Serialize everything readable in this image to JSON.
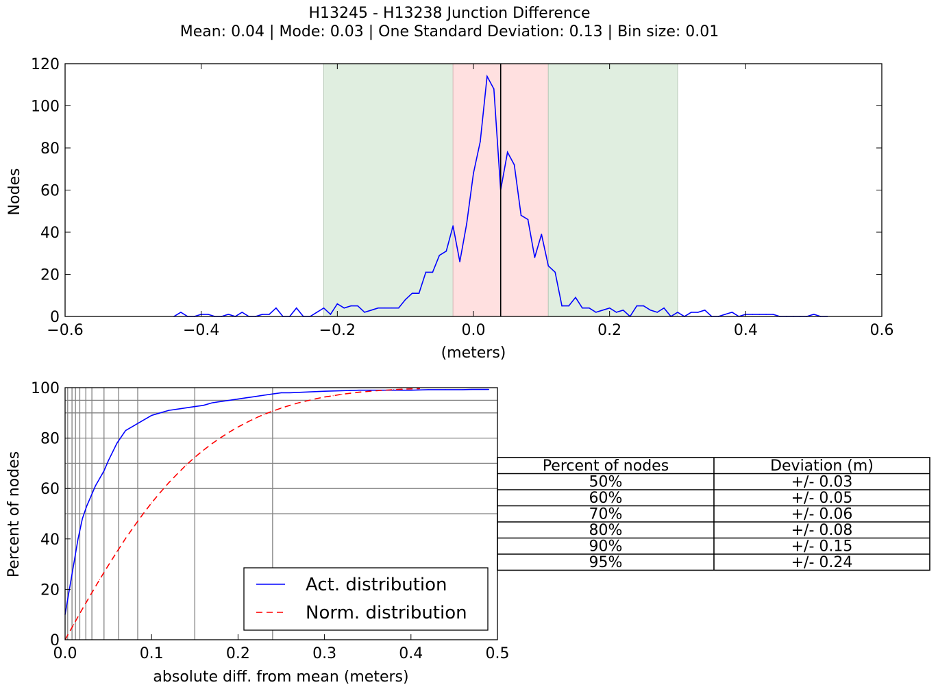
{
  "figure": {
    "title": "H13245 - H13238 Junction Difference",
    "subtitle": "Mean: 0.04 | Mode: 0.03 | One Standard Deviation: 0.13 | Bin size: 0.01"
  },
  "chart_data": [
    {
      "type": "line",
      "name": "histogram",
      "xlabel": "(meters)",
      "ylabel": "Nodes",
      "xlim": [
        -0.6,
        0.6
      ],
      "ylim": [
        0,
        120
      ],
      "xticks": [
        -0.6,
        -0.4,
        -0.2,
        0.0,
        0.2,
        0.4,
        0.6
      ],
      "xtick_labels": [
        "−0.6",
        "−0.4",
        "−0.2",
        "0.0",
        "0.2",
        "0.4",
        "0.6"
      ],
      "yticks": [
        0,
        20,
        40,
        60,
        80,
        100,
        120
      ],
      "ytick_labels": [
        "0",
        "20",
        "40",
        "60",
        "80",
        "100",
        "120"
      ],
      "bands": [
        {
          "from": -0.22,
          "to": -0.03,
          "color": "#e0eee0",
          "edge": "#b9c9b9"
        },
        {
          "from": -0.03,
          "to": 0.11,
          "color": "#ffe0e0",
          "edge": "#d9b9b9"
        },
        {
          "from": 0.11,
          "to": 0.3,
          "color": "#e0eee0",
          "edge": "#b9c9b9"
        }
      ],
      "mean_line": 0.04,
      "line_color": "#0000ff",
      "x": [
        -0.44,
        -0.43,
        -0.42,
        -0.41,
        -0.4,
        -0.39,
        -0.38,
        -0.37,
        -0.36,
        -0.35,
        -0.34,
        -0.33,
        -0.32,
        -0.31,
        -0.3,
        -0.29,
        -0.28,
        -0.27,
        -0.26,
        -0.25,
        -0.24,
        -0.23,
        -0.22,
        -0.21,
        -0.2,
        -0.19,
        -0.18,
        -0.17,
        -0.16,
        -0.15,
        -0.14,
        -0.13,
        -0.12,
        -0.11,
        -0.1,
        -0.09,
        -0.08,
        -0.07,
        -0.06,
        -0.05,
        -0.04,
        -0.03,
        -0.02,
        -0.01,
        0.0,
        0.01,
        0.02,
        0.03,
        0.04,
        0.05,
        0.06,
        0.07,
        0.08,
        0.09,
        0.1,
        0.11,
        0.12,
        0.13,
        0.14,
        0.15,
        0.16,
        0.17,
        0.18,
        0.19,
        0.2,
        0.21,
        0.22,
        0.23,
        0.24,
        0.25,
        0.26,
        0.27,
        0.28,
        0.29,
        0.3,
        0.31,
        0.32,
        0.33,
        0.34,
        0.35,
        0.36,
        0.37,
        0.38,
        0.39,
        0.4,
        0.41,
        0.42,
        0.43,
        0.44,
        0.45,
        0.46,
        0.47,
        0.48,
        0.49,
        0.5,
        0.51,
        0.52
      ],
      "y": [
        0,
        2,
        0,
        0,
        1,
        1,
        0,
        0,
        1,
        0,
        2,
        0,
        0,
        1,
        1,
        4,
        0,
        0,
        4,
        0,
        0,
        2,
        4,
        1,
        6,
        4,
        5,
        5,
        2,
        3,
        4,
        4,
        4,
        4,
        8,
        11,
        11,
        21,
        21,
        29,
        31,
        43,
        26,
        44,
        68,
        83,
        114,
        108,
        60,
        78,
        72,
        48,
        46,
        28,
        39,
        24,
        21,
        5,
        5,
        9,
        4,
        4,
        2,
        3,
        4,
        2,
        3,
        0,
        5,
        5,
        3,
        2,
        4,
        0,
        2,
        0,
        2,
        2,
        3,
        0,
        0,
        1,
        2,
        0,
        1,
        1,
        1,
        1,
        1,
        0,
        0,
        0,
        0,
        0,
        1,
        0,
        0
      ]
    },
    {
      "type": "line",
      "name": "cumulative",
      "xlabel": "absolute diff. from mean (meters)",
      "ylabel": "Percent of nodes",
      "xlim": [
        0,
        0.5
      ],
      "ylim": [
        0,
        100
      ],
      "xticks": [
        0.0,
        0.1,
        0.2,
        0.3,
        0.4,
        0.5
      ],
      "xtick_labels": [
        "0.0",
        "0.1",
        "0.2",
        "0.3",
        "0.4",
        "0.5"
      ],
      "yticks": [
        0,
        20,
        40,
        60,
        80,
        100
      ],
      "ytick_labels": [
        "0",
        "20",
        "40",
        "60",
        "80",
        "100"
      ],
      "hgrid": [
        50,
        60,
        70,
        80,
        90,
        95
      ],
      "vgrid": [
        0.003,
        0.008,
        0.012,
        0.017,
        0.024,
        0.031,
        0.045,
        0.062,
        0.084,
        0.15,
        0.24
      ],
      "series": [
        {
          "name": "Act. distribution",
          "color": "#0000ff",
          "dash": false,
          "x": [
            0,
            0.005,
            0.01,
            0.015,
            0.02,
            0.025,
            0.03,
            0.035,
            0.04,
            0.045,
            0.05,
            0.06,
            0.07,
            0.08,
            0.09,
            0.1,
            0.11,
            0.12,
            0.13,
            0.14,
            0.15,
            0.16,
            0.17,
            0.18,
            0.19,
            0.2,
            0.21,
            0.22,
            0.23,
            0.24,
            0.25,
            0.26,
            0.28,
            0.3,
            0.32,
            0.34,
            0.36,
            0.38,
            0.4,
            0.42,
            0.44,
            0.46,
            0.47,
            0.49
          ],
          "y": [
            10,
            20,
            30,
            40,
            48,
            53,
            57,
            61,
            64,
            67,
            71,
            78,
            83,
            85,
            87,
            89,
            90,
            91,
            91.5,
            92,
            92.5,
            93,
            94,
            94.5,
            95,
            95.5,
            96,
            96.5,
            97,
            97.5,
            98,
            98,
            98.3,
            98.6,
            98.8,
            99,
            99,
            99,
            99,
            99.2,
            99.2,
            99.2,
            99.3,
            99.3
          ]
        },
        {
          "name": "Norm. distribution",
          "color": "#ff0000",
          "dash": true,
          "x": [
            0,
            0.01,
            0.02,
            0.03,
            0.04,
            0.05,
            0.06,
            0.07,
            0.08,
            0.09,
            0.1,
            0.11,
            0.12,
            0.13,
            0.14,
            0.15,
            0.16,
            0.17,
            0.18,
            0.19,
            0.2,
            0.21,
            0.22,
            0.23,
            0.24,
            0.25,
            0.26,
            0.27,
            0.28,
            0.29,
            0.3,
            0.31,
            0.32,
            0.33,
            0.34,
            0.35,
            0.36,
            0.37,
            0.38,
            0.39,
            0.4,
            0.41
          ],
          "y": [
            0,
            6.1,
            12.2,
            18.1,
            23.9,
            29.5,
            34.9,
            40.2,
            45.1,
            49.8,
            54.3,
            58.4,
            62.3,
            65.9,
            69.3,
            72.4,
            75.2,
            77.8,
            80.2,
            82.4,
            84.4,
            86.2,
            87.9,
            89.4,
            90.7,
            91.9,
            93.0,
            94.0,
            94.8,
            95.6,
            96.3,
            96.8,
            97.4,
            97.8,
            98.2,
            98.5,
            98.8,
            99.0,
            99.2,
            99.4,
            99.5,
            99.6
          ]
        }
      ]
    }
  ],
  "table": {
    "headers": [
      "Percent of nodes",
      "Deviation (m)"
    ],
    "rows": [
      [
        "50%",
        "+/- 0.03"
      ],
      [
        "60%",
        "+/- 0.05"
      ],
      [
        "70%",
        "+/- 0.06"
      ],
      [
        "80%",
        "+/- 0.08"
      ],
      [
        "90%",
        "+/- 0.15"
      ],
      [
        "95%",
        "+/- 0.24"
      ]
    ]
  }
}
